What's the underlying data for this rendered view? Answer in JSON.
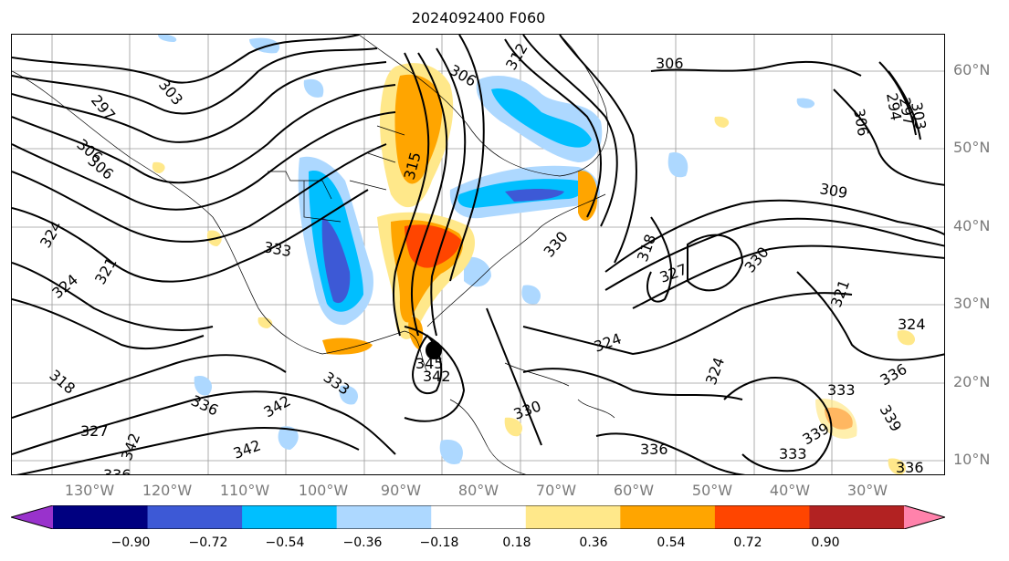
{
  "title": "2024092400 F060",
  "lat_labels": [
    "60°N",
    "50°N",
    "40°N",
    "30°N",
    "20°N",
    "10°N"
  ],
  "lon_labels": [
    "130°W",
    "120°W",
    "110°W",
    "100°W",
    "90°W",
    "80°W",
    "70°W",
    "60°W",
    "50°W",
    "40°W",
    "30°W"
  ],
  "contour_labels": [
    "297",
    "303",
    "306",
    "312",
    "306",
    "294",
    "297",
    "303",
    "306",
    "309",
    "306",
    "306",
    "315",
    "318",
    "321",
    "321",
    "324",
    "324",
    "324",
    "324",
    "327",
    "327",
    "330",
    "330",
    "330",
    "333",
    "333",
    "333",
    "336",
    "336",
    "336",
    "336",
    "336",
    "339",
    "339",
    "342",
    "342",
    "342",
    "342",
    "345",
    "333",
    "318",
    "336",
    "324"
  ],
  "colorbar": {
    "colors": [
      "#9932cc",
      "#000080",
      "#3d59d6",
      "#00bfff",
      "#add8ff",
      "#ffffff",
      "#ffe88a",
      "#ffa500",
      "#ff4500",
      "#b22222",
      "#ff82ab"
    ],
    "ticks": [
      "−0.90",
      "−0.72",
      "−0.54",
      "−0.36",
      "−0.18",
      "0.18",
      "0.36",
      "0.54",
      "0.72",
      "0.90"
    ]
  },
  "shading_colors": {
    "strong_neg": "#3d59d6",
    "mid_neg": "#00bfff",
    "weak_neg": "#add8ff",
    "weak_pos": "#ffe88a",
    "mid_pos": "#ffa500",
    "strong_pos": "#ff4500"
  }
}
